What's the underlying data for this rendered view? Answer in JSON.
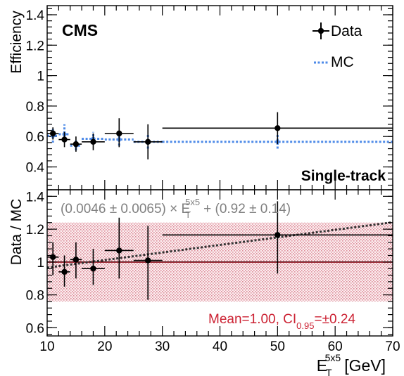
{
  "chart_data": [
    {
      "type": "scatter",
      "panel": "upper",
      "ylabel": "Efficiency",
      "ylim": [
        0.25,
        1.46
      ],
      "xlim": [
        10,
        70
      ],
      "yticks": [
        "0.4",
        "0.6",
        "0.8",
        "1",
        "1.2",
        "1.4"
      ],
      "experiment_label": "CMS",
      "category_label": "Single-track",
      "legend": {
        "placement": "top-right",
        "data_label": "Data",
        "mc_label": "MC"
      },
      "colors": {
        "data": "#000000",
        "mc": "#4f8be8"
      },
      "series": [
        {
          "name": "Data",
          "points": [
            {
              "x": 11,
              "xlo": 10,
              "xhi": 12,
              "y": 0.62,
              "ylo": 0.58,
              "yhi": 0.66
            },
            {
              "x": 13,
              "xlo": 12,
              "xhi": 14,
              "y": 0.58,
              "ylo": 0.53,
              "yhi": 0.63
            },
            {
              "x": 15,
              "xlo": 14,
              "xhi": 16,
              "y": 0.55,
              "ylo": 0.5,
              "yhi": 0.6
            },
            {
              "x": 18,
              "xlo": 16,
              "xhi": 20,
              "y": 0.565,
              "ylo": 0.51,
              "yhi": 0.62
            },
            {
              "x": 22.5,
              "xlo": 20,
              "xhi": 25,
              "y": 0.62,
              "ylo": 0.53,
              "yhi": 0.72
            },
            {
              "x": 27.5,
              "xlo": 25,
              "xhi": 30,
              "y": 0.565,
              "ylo": 0.45,
              "yhi": 0.68
            },
            {
              "x": 50,
              "xlo": 30,
              "xhi": 70,
              "y": 0.655,
              "ylo": 0.55,
              "yhi": 0.76
            }
          ]
        },
        {
          "name": "MC",
          "points": [
            {
              "x": 11,
              "xlo": 10,
              "xhi": 12,
              "y": 0.605,
              "ylo": 0.56,
              "yhi": 0.65
            },
            {
              "x": 13,
              "xlo": 12,
              "xhi": 14,
              "y": 0.615,
              "ylo": 0.57,
              "yhi": 0.68
            },
            {
              "x": 15,
              "xlo": 14,
              "xhi": 16,
              "y": 0.54,
              "ylo": 0.51,
              "yhi": 0.58
            },
            {
              "x": 18,
              "xlo": 16,
              "xhi": 20,
              "y": 0.585,
              "ylo": 0.55,
              "yhi": 0.63
            },
            {
              "x": 22.5,
              "xlo": 20,
              "xhi": 25,
              "y": 0.58,
              "ylo": 0.54,
              "yhi": 0.62
            },
            {
              "x": 27.5,
              "xlo": 25,
              "xhi": 30,
              "y": 0.565,
              "ylo": 0.52,
              "yhi": 0.61
            },
            {
              "x": 50,
              "xlo": 30,
              "xhi": 70,
              "y": 0.565,
              "ylo": 0.52,
              "yhi": 0.61
            }
          ]
        }
      ]
    },
    {
      "type": "scatter",
      "panel": "lower",
      "ylabel": "Data / MC",
      "xlabel_main": "E",
      "xlabel_sub": "T",
      "xlabel_sup": "5x5",
      "xlabel_unit": "[GeV]",
      "ylim": [
        0.55,
        1.44
      ],
      "xlim": [
        10,
        70
      ],
      "xticks": [
        "10",
        "20",
        "30",
        "40",
        "50",
        "60",
        "70"
      ],
      "yticks": [
        "0.6",
        "0.8",
        "1",
        "1.2",
        "1.4"
      ],
      "fit_label": {
        "part1": "(0.0046 ± 0.0065) × E",
        "sub": "T",
        "sup": "5x5",
        "part2": "+ (0.92 ± 0.14)"
      },
      "fit": {
        "slope": 0.0046,
        "intercept": 0.92
      },
      "mean": 1.0,
      "ci_band": [
        0.76,
        1.24
      ],
      "mean_label": {
        "part1": "Mean=1.00, CI",
        "sub": "0.95",
        "part2": "=±0.24"
      },
      "colors": {
        "ratio": "#000000",
        "band": "#e8b0b8",
        "mean_line": "#cc2233",
        "fit_line": "#333333",
        "fit_text": "#808080"
      },
      "series": [
        {
          "name": "Data / MC",
          "points": [
            {
              "x": 11,
              "xlo": 10,
              "xhi": 12,
              "y": 1.03,
              "ylo": 0.92,
              "yhi": 1.12
            },
            {
              "x": 13,
              "xlo": 12,
              "xhi": 14,
              "y": 0.94,
              "ylo": 0.85,
              "yhi": 1.04
            },
            {
              "x": 15,
              "xlo": 14,
              "xhi": 16,
              "y": 1.015,
              "ylo": 0.9,
              "yhi": 1.12
            },
            {
              "x": 18,
              "xlo": 16,
              "xhi": 20,
              "y": 0.96,
              "ylo": 0.86,
              "yhi": 1.08
            },
            {
              "x": 22.5,
              "xlo": 20,
              "xhi": 25,
              "y": 1.07,
              "ylo": 0.9,
              "yhi": 1.27
            },
            {
              "x": 27.5,
              "xlo": 25,
              "xhi": 30,
              "y": 1.01,
              "ylo": 0.77,
              "yhi": 1.22
            },
            {
              "x": 50,
              "xlo": 30,
              "xhi": 70,
              "y": 1.165,
              "ylo": 0.93,
              "yhi": 1.37
            }
          ]
        }
      ]
    }
  ]
}
